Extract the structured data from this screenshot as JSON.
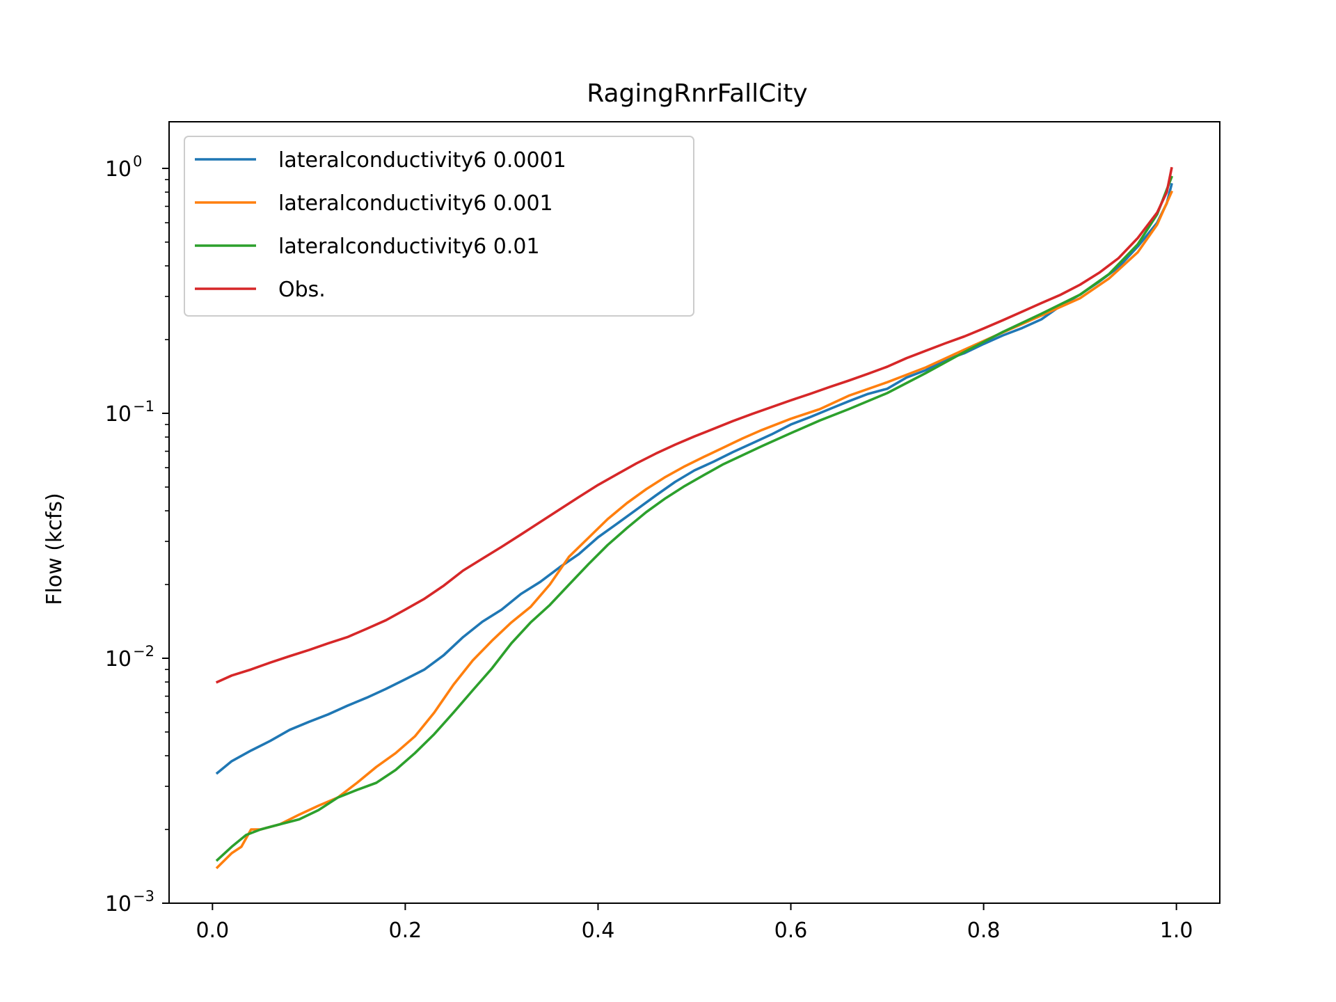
{
  "chart_data": {
    "type": "line",
    "title": "RagingRnrFallCity",
    "xlabel": "",
    "ylabel": "Flow (kcfs)",
    "xlim": [
      -0.045,
      1.045
    ],
    "ylim": [
      0.001,
      1.55
    ],
    "yscale": "log",
    "grid": false,
    "legend_position": "top-left",
    "xticks": [
      {
        "value": 0.0,
        "label": "0.0"
      },
      {
        "value": 0.2,
        "label": "0.2"
      },
      {
        "value": 0.4,
        "label": "0.4"
      },
      {
        "value": 0.6,
        "label": "0.6"
      },
      {
        "value": 0.8,
        "label": "0.8"
      },
      {
        "value": 1.0,
        "label": "1.0"
      }
    ],
    "yticks": [
      {
        "value": 0.001,
        "base": "10",
        "exp": "−3"
      },
      {
        "value": 0.01,
        "base": "10",
        "exp": "−2"
      },
      {
        "value": 0.1,
        "base": "10",
        "exp": "−1"
      },
      {
        "value": 1,
        "base": "10",
        "exp": "0"
      }
    ],
    "series": [
      {
        "name": "lateralconductivity6 0.0001",
        "color": "#1f77b4",
        "x": [
          0.005,
          0.02,
          0.04,
          0.06,
          0.08,
          0.1,
          0.12,
          0.14,
          0.16,
          0.18,
          0.2,
          0.22,
          0.24,
          0.26,
          0.28,
          0.3,
          0.32,
          0.34,
          0.36,
          0.38,
          0.4,
          0.42,
          0.44,
          0.46,
          0.48,
          0.5,
          0.52,
          0.54,
          0.56,
          0.58,
          0.6,
          0.62,
          0.64,
          0.66,
          0.68,
          0.7,
          0.72,
          0.74,
          0.76,
          0.78,
          0.8,
          0.82,
          0.84,
          0.86,
          0.88,
          0.9,
          0.92,
          0.94,
          0.96,
          0.98,
          0.99,
          0.995
        ],
        "y": [
          0.0034,
          0.0038,
          0.0042,
          0.0046,
          0.0051,
          0.0055,
          0.0059,
          0.0064,
          0.0069,
          0.0075,
          0.0082,
          0.009,
          0.0103,
          0.0122,
          0.0141,
          0.0158,
          0.0183,
          0.0205,
          0.0235,
          0.0266,
          0.0312,
          0.0355,
          0.0405,
          0.0462,
          0.0525,
          0.0585,
          0.0635,
          0.0695,
          0.0755,
          0.082,
          0.09,
          0.0965,
          0.104,
          0.112,
          0.12,
          0.126,
          0.14,
          0.15,
          0.165,
          0.176,
          0.192,
          0.208,
          0.223,
          0.242,
          0.275,
          0.305,
          0.345,
          0.395,
          0.48,
          0.6,
          0.72,
          0.86
        ]
      },
      {
        "name": "lateralconductivity6 0.001",
        "color": "#ff7f0e",
        "x": [
          0.005,
          0.02,
          0.03,
          0.04,
          0.05,
          0.07,
          0.09,
          0.11,
          0.13,
          0.15,
          0.17,
          0.19,
          0.21,
          0.23,
          0.25,
          0.27,
          0.29,
          0.31,
          0.33,
          0.35,
          0.37,
          0.39,
          0.41,
          0.43,
          0.45,
          0.47,
          0.49,
          0.51,
          0.53,
          0.55,
          0.57,
          0.6,
          0.63,
          0.66,
          0.7,
          0.74,
          0.78,
          0.82,
          0.86,
          0.9,
          0.93,
          0.96,
          0.98,
          0.995
        ],
        "y": [
          0.0014,
          0.0016,
          0.0017,
          0.002,
          0.002,
          0.0021,
          0.0023,
          0.0025,
          0.0027,
          0.0031,
          0.0036,
          0.0041,
          0.0048,
          0.006,
          0.0078,
          0.0098,
          0.0118,
          0.014,
          0.0162,
          0.02,
          0.026,
          0.031,
          0.037,
          0.043,
          0.049,
          0.055,
          0.0608,
          0.0665,
          0.0725,
          0.079,
          0.0855,
          0.095,
          0.104,
          0.118,
          0.134,
          0.154,
          0.182,
          0.214,
          0.251,
          0.295,
          0.355,
          0.455,
          0.59,
          0.8
        ]
      },
      {
        "name": "lateralconductivity6 0.01",
        "color": "#2ca02c",
        "x": [
          0.005,
          0.02,
          0.035,
          0.05,
          0.07,
          0.09,
          0.11,
          0.13,
          0.15,
          0.17,
          0.19,
          0.21,
          0.23,
          0.25,
          0.27,
          0.29,
          0.31,
          0.33,
          0.35,
          0.37,
          0.39,
          0.41,
          0.43,
          0.45,
          0.47,
          0.49,
          0.51,
          0.53,
          0.55,
          0.57,
          0.6,
          0.63,
          0.66,
          0.7,
          0.74,
          0.78,
          0.82,
          0.86,
          0.9,
          0.93,
          0.96,
          0.98,
          0.995
        ],
        "y": [
          0.0015,
          0.0017,
          0.0019,
          0.002,
          0.0021,
          0.0022,
          0.0024,
          0.0027,
          0.0029,
          0.0031,
          0.0035,
          0.0041,
          0.0049,
          0.006,
          0.0074,
          0.0091,
          0.0115,
          0.014,
          0.0165,
          0.02,
          0.0242,
          0.029,
          0.034,
          0.0395,
          0.045,
          0.0505,
          0.056,
          0.062,
          0.0675,
          0.0735,
          0.083,
          0.0935,
          0.104,
          0.121,
          0.146,
          0.178,
          0.215,
          0.255,
          0.305,
          0.37,
          0.49,
          0.65,
          0.92
        ]
      },
      {
        "name": "Obs.",
        "color": "#d62728",
        "x": [
          0.005,
          0.02,
          0.04,
          0.06,
          0.08,
          0.1,
          0.12,
          0.14,
          0.16,
          0.18,
          0.2,
          0.22,
          0.24,
          0.26,
          0.28,
          0.3,
          0.32,
          0.34,
          0.36,
          0.38,
          0.4,
          0.42,
          0.44,
          0.46,
          0.48,
          0.5,
          0.52,
          0.54,
          0.56,
          0.58,
          0.6,
          0.62,
          0.64,
          0.66,
          0.68,
          0.7,
          0.72,
          0.74,
          0.76,
          0.78,
          0.8,
          0.82,
          0.84,
          0.86,
          0.88,
          0.9,
          0.92,
          0.94,
          0.96,
          0.98,
          0.99,
          0.995
        ],
        "y": [
          0.008,
          0.0085,
          0.009,
          0.0096,
          0.0102,
          0.0108,
          0.0115,
          0.0122,
          0.0132,
          0.0143,
          0.0158,
          0.0175,
          0.0198,
          0.0228,
          0.0255,
          0.0285,
          0.032,
          0.036,
          0.0405,
          0.0455,
          0.051,
          0.0565,
          0.0625,
          0.0685,
          0.0745,
          0.0805,
          0.0865,
          0.093,
          0.0995,
          0.106,
          0.113,
          0.12,
          0.128,
          0.136,
          0.145,
          0.155,
          0.168,
          0.18,
          0.193,
          0.206,
          0.222,
          0.24,
          0.26,
          0.282,
          0.305,
          0.335,
          0.375,
          0.43,
          0.52,
          0.66,
          0.8,
          1.0
        ]
      }
    ]
  }
}
